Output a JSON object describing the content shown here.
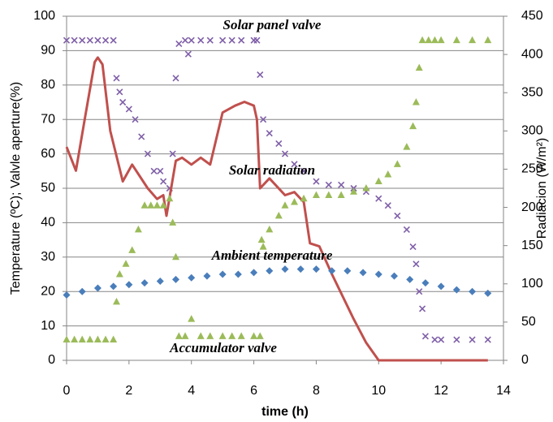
{
  "chart_data": {
    "type": "scatter",
    "xlabel": "time (h)",
    "ylabel": "Temperature (ºC); Valvle aperture(%)",
    "y2label": "Radiacion (W/m²)",
    "xlim": [
      0,
      14
    ],
    "xticks": [
      0,
      2,
      4,
      6,
      8,
      10,
      12,
      14
    ],
    "ylim": [
      0,
      100
    ],
    "yticks": [
      0,
      10,
      20,
      30,
      40,
      50,
      60,
      70,
      80,
      90,
      100
    ],
    "y2lim": [
      0,
      450
    ],
    "y2ticks": [
      0,
      50,
      100,
      150,
      200,
      250,
      300,
      350,
      400,
      450
    ],
    "grid": true,
    "series": [
      {
        "name": "Solar panel valve",
        "color": "#7f5fa8",
        "marker": "x",
        "x": [
          0,
          0.25,
          0.5,
          0.75,
          1,
          1.25,
          1.5,
          1.6,
          1.7,
          1.8,
          2,
          2.2,
          2.4,
          2.6,
          2.8,
          3,
          3.1,
          3.3,
          3.4,
          3.5,
          3.6,
          3.8,
          3.9,
          4,
          4.3,
          4.6,
          5,
          5.3,
          5.6,
          6,
          6.1,
          6.2,
          6.3,
          6.5,
          6.8,
          7,
          7.3,
          7.6,
          8,
          8.4,
          8.8,
          9.2,
          9.6,
          10,
          10.3,
          10.6,
          10.9,
          11.1,
          11.2,
          11.3,
          11.4,
          11.5,
          11.8,
          12,
          12.5,
          13,
          13.5
        ],
        "values": [
          93,
          93,
          93,
          93,
          93,
          93,
          93,
          82,
          78,
          75,
          73,
          70,
          65,
          60,
          55,
          55,
          52,
          50,
          60,
          82,
          92,
          93,
          89,
          93,
          93,
          93,
          93,
          93,
          93,
          93,
          93,
          83,
          70,
          66,
          63,
          60,
          57,
          55,
          52,
          51,
          51,
          50,
          49,
          47,
          45,
          42,
          38,
          33,
          28,
          20,
          15,
          7,
          6,
          6,
          6,
          6,
          6
        ]
      },
      {
        "name": "Solar radiation",
        "color": "#c0504d",
        "marker": "line",
        "axis": "y2",
        "x": [
          0,
          0.3,
          0.6,
          0.9,
          1.0,
          1.15,
          1.4,
          1.8,
          2.1,
          2.6,
          2.9,
          3.1,
          3.2,
          3.5,
          3.7,
          4.0,
          4.3,
          4.6,
          5.0,
          5.4,
          5.7,
          6.0,
          6.1,
          6.2,
          6.5,
          7.0,
          7.3,
          7.6,
          7.8,
          8.1,
          8.5,
          9.2,
          9.6,
          10,
          13.5
        ],
        "values": [
          279,
          248,
          320,
          390,
          396,
          387,
          300,
          234,
          256,
          225,
          211,
          216,
          189,
          261,
          265,
          256,
          265,
          256,
          324,
          333,
          338,
          333,
          315,
          225,
          238,
          216,
          220,
          207,
          153,
          149,
          113,
          54,
          23,
          0,
          0
        ]
      },
      {
        "name": "Ambient temperature",
        "color": "#4a7ebb",
        "marker": "diamond",
        "x": [
          0,
          0.5,
          1,
          1.5,
          2,
          2.5,
          3,
          3.5,
          4,
          4.5,
          5,
          5.5,
          6,
          6.5,
          7,
          7.5,
          8,
          8.5,
          9,
          9.5,
          10,
          10.5,
          11,
          11.5,
          12,
          12.5,
          13,
          13.5
        ],
        "values": [
          19,
          20,
          21,
          21.5,
          22,
          22.5,
          23,
          23.5,
          24,
          24.5,
          25,
          25,
          25.5,
          26,
          26.5,
          26.5,
          26.5,
          26,
          26,
          25.5,
          25,
          24.5,
          23.5,
          22.5,
          21.5,
          20.5,
          20,
          19.5
        ]
      },
      {
        "name": "Accumulator valve",
        "color": "#9bbb59",
        "marker": "triangle",
        "x": [
          0,
          0.25,
          0.5,
          0.75,
          1,
          1.25,
          1.5,
          1.6,
          1.7,
          1.9,
          2.1,
          2.3,
          2.5,
          2.7,
          2.9,
          3.1,
          3.3,
          3.4,
          3.5,
          3.6,
          3.8,
          4,
          4.3,
          4.6,
          5,
          5.3,
          5.6,
          6,
          6.2,
          6.25,
          6.3,
          6.5,
          6.8,
          7,
          7.3,
          7.6,
          8,
          8.4,
          8.8,
          9.2,
          9.6,
          10,
          10.3,
          10.6,
          10.9,
          11.1,
          11.2,
          11.3,
          11.4,
          11.6,
          11.8,
          12,
          12.5,
          13,
          13.5
        ],
        "values": [
          6,
          6,
          6,
          6,
          6,
          6,
          6,
          17,
          25,
          28,
          32,
          38,
          45,
          45,
          45,
          45,
          47,
          40,
          30,
          7,
          7,
          12,
          7,
          7,
          7,
          7,
          7,
          7,
          7,
          35,
          33,
          38,
          42,
          45,
          46,
          47,
          48,
          48,
          48,
          49,
          50,
          52,
          54,
          57,
          62,
          68,
          75,
          85,
          93,
          93,
          93,
          93,
          93,
          93,
          93
        ]
      }
    ]
  }
}
